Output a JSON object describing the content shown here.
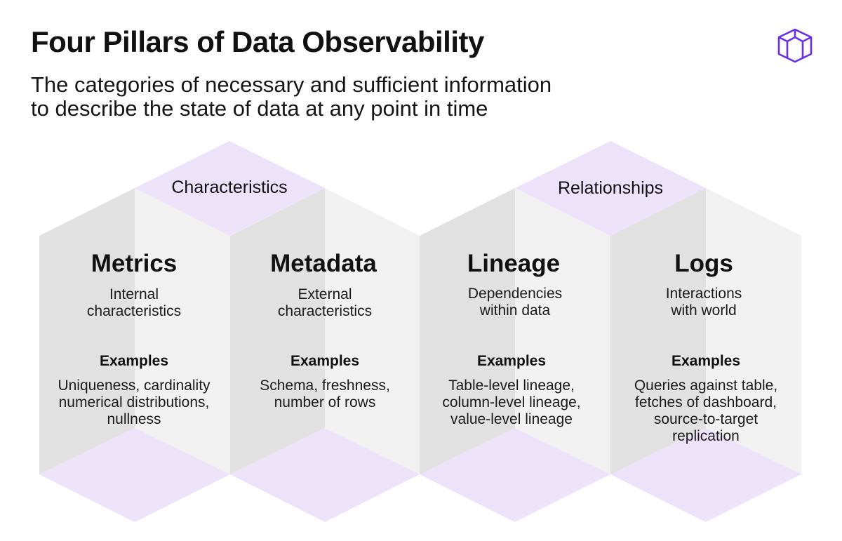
{
  "title": "Four Pillars of Data Observability",
  "subtitle_lines": [
    "The categories of necessary and sufficient information",
    "to describe the state of data at any point in time"
  ],
  "colors": {
    "purple_light": "#ece3fb",
    "gray_dark": "#e1e1e1",
    "gray_light": "#f1f1f1",
    "logo": "#6a2ee8"
  },
  "logo": {
    "icon": "cube-logo-icon"
  },
  "groups": [
    {
      "label": "Characteristics"
    },
    {
      "label": "Relationships"
    }
  ],
  "pillars": [
    {
      "name": "Metrics",
      "description": [
        "Internal",
        "characteristics"
      ],
      "examples_label": "Examples",
      "examples": [
        "Uniqueness, cardinality",
        "numerical distributions,",
        "nullness"
      ]
    },
    {
      "name": "Metadata",
      "description": [
        "External",
        "characteristics"
      ],
      "examples_label": "Examples",
      "examples": [
        "Schema, freshness,",
        "number of rows"
      ]
    },
    {
      "name": "Lineage",
      "description": [
        "Dependencies",
        "within data"
      ],
      "examples_label": "Examples",
      "examples": [
        "Table-level lineage,",
        "column-level lineage,",
        "value-level lineage"
      ]
    },
    {
      "name": "Logs",
      "description": [
        "Interactions",
        "with world"
      ],
      "examples_label": "Examples",
      "examples": [
        "Queries against table,",
        "fetches of dashboard,",
        "source-to-target",
        "replication"
      ]
    }
  ]
}
